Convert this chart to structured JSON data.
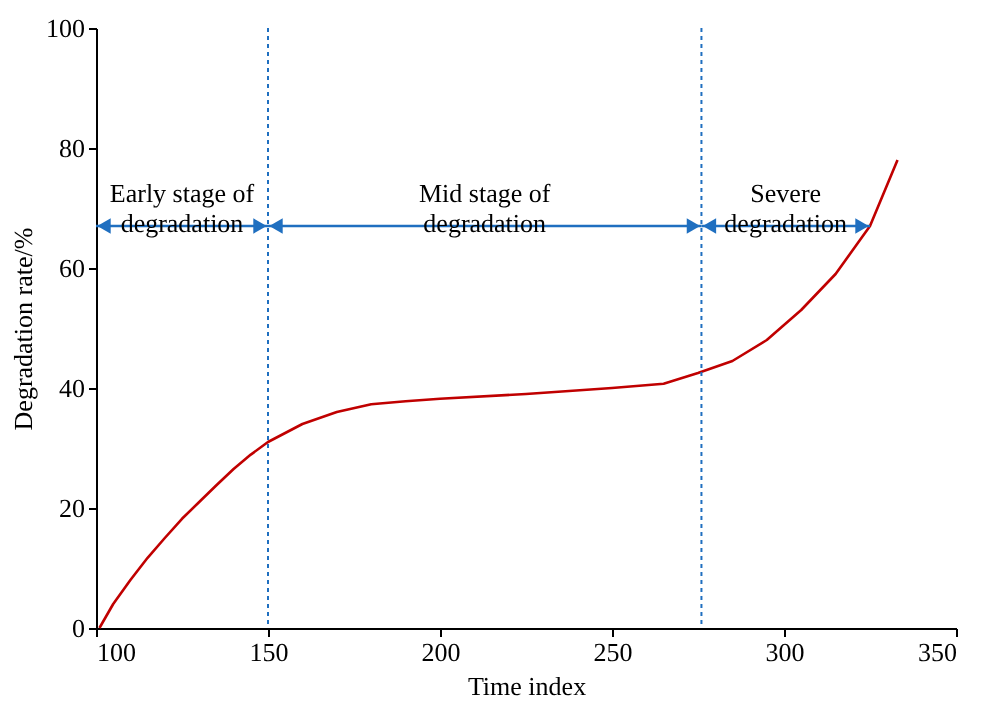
{
  "chart_data": {
    "type": "line",
    "xlabel": "Time index",
    "ylabel": "Degradation rate/%",
    "x": [
      101,
      105,
      110,
      115,
      120,
      125,
      130,
      135,
      140,
      145,
      150,
      160,
      170,
      180,
      190,
      200,
      225,
      250,
      265,
      275,
      285,
      295,
      305,
      315,
      325,
      333
    ],
    "series": [
      {
        "color": "#c00000",
        "values": [
          0,
          4,
          8,
          11.7,
          15,
          18.2,
          21,
          23.8,
          26.5,
          28.9,
          31,
          34,
          36,
          37.3,
          37.8,
          38.2,
          39,
          40,
          40.7,
          42.5,
          44.5,
          48,
          53,
          59,
          67,
          78
        ]
      }
    ],
    "xlim": [
      100,
      350
    ],
    "xticks": [
      100,
      150,
      200,
      250,
      300,
      350
    ],
    "ylim": [
      0,
      100
    ],
    "yticks": [
      0,
      20,
      40,
      60,
      80,
      100
    ],
    "grid": false,
    "marker": "none",
    "line_style": "solid",
    "ref_lines": [
      {
        "axis": "x",
        "value": 150,
        "color": "#1f6fc0",
        "line_style": "dotted"
      },
      {
        "axis": "x",
        "value": 276,
        "color": "#1f6fc0",
        "line_style": "dotted"
      }
    ],
    "annotations": [
      "Early stage of\ndegradation",
      "Mid stage of\ndegradation",
      "Severe\ndegradation"
    ]
  }
}
